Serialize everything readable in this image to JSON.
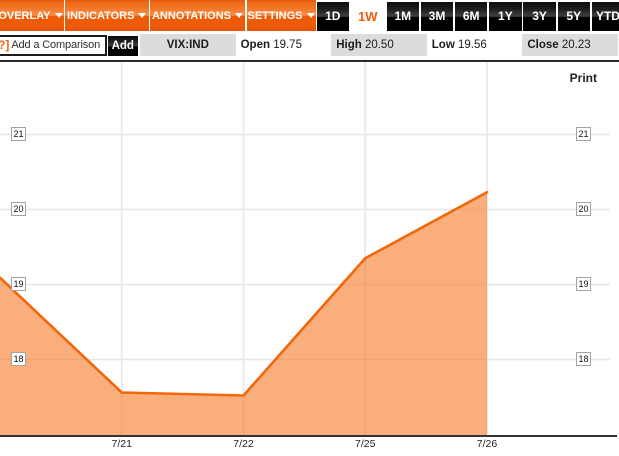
{
  "menubar": {
    "items": [
      {
        "label": "OVERLAY"
      },
      {
        "label": "INDICATORS"
      },
      {
        "label": "ANNOTATIONS"
      },
      {
        "label": "SETTINGS"
      }
    ],
    "ranges": [
      {
        "label": "1D",
        "selected": false
      },
      {
        "label": "1W",
        "selected": true
      },
      {
        "label": "1M",
        "selected": false
      },
      {
        "label": "3M",
        "selected": false
      },
      {
        "label": "6M",
        "selected": false
      },
      {
        "label": "1Y",
        "selected": false
      },
      {
        "label": "3Y",
        "selected": false
      },
      {
        "label": "5Y",
        "selected": false
      },
      {
        "label": "YTD",
        "selected": false
      }
    ]
  },
  "toolbar": {
    "help_icon": "[?]",
    "comparison_placeholder": "Add a Comparison",
    "add_label": "Add",
    "quote_cells": [
      {
        "label": "",
        "value": "VIX:IND",
        "gray": true,
        "symbol": true
      },
      {
        "label": "Open",
        "value": "19.75",
        "gray": false
      },
      {
        "label": "High",
        "value": "20.50",
        "gray": true
      },
      {
        "label": "Low",
        "value": "19.56",
        "gray": false
      },
      {
        "label": "Close",
        "value": "20.23",
        "gray": true
      }
    ]
  },
  "chart": {
    "print_label": "Print"
  },
  "chart_data": {
    "type": "area",
    "x_labels": [
      "7/21",
      "7/22",
      "7/25",
      "7/26"
    ],
    "points": [
      {
        "x_label": "",
        "value": 19.09
      },
      {
        "x_label": "7/21",
        "value": 17.56
      },
      {
        "x_label": "7/22",
        "value": 17.52
      },
      {
        "x_label": "7/25",
        "value": 19.35
      },
      {
        "x_label": "7/26",
        "value": 20.23
      }
    ],
    "y_ticks": [
      21,
      20,
      19,
      18
    ],
    "ylim": [
      17.0,
      22.0
    ],
    "grid": true,
    "line_color": "#f1670a",
    "fill_color": "rgba(247,125,42,0.62)",
    "grid_color": "#e6e6e6",
    "axis_color": "#333333"
  }
}
